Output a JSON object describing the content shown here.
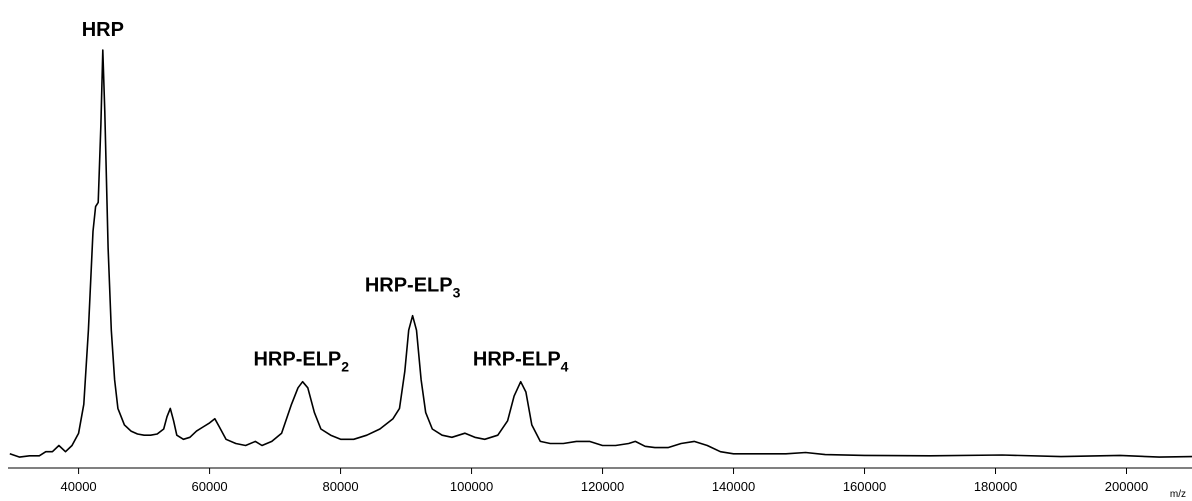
{
  "chart_data": {
    "type": "line",
    "title": "",
    "xlabel": "m/z",
    "ylabel": "",
    "xlim": [
      28000,
      210000
    ],
    "ylim": [
      0,
      100
    ],
    "grid": false,
    "x_ticks": [
      {
        "value": 40000,
        "label": "40000"
      },
      {
        "value": 60000,
        "label": "60000"
      },
      {
        "value": 80000,
        "label": "80000"
      },
      {
        "value": 100000,
        "label": "100000"
      },
      {
        "value": 120000,
        "label": "120000"
      },
      {
        "value": 140000,
        "label": "140000"
      },
      {
        "value": 160000,
        "label": "160000"
      },
      {
        "value": 180000,
        "label": "180000"
      },
      {
        "value": 200000,
        "label": "200000"
      }
    ],
    "annotations": [
      {
        "text": "HRP",
        "sub": "",
        "x": 43700,
        "y": 100
      },
      {
        "text": "HRP-ELP",
        "sub": "2",
        "x": 74000,
        "y": 20
      },
      {
        "text": "HRP-ELP",
        "sub": "3",
        "x": 91000,
        "y": 38
      },
      {
        "text": "HRP-ELP",
        "sub": "4",
        "x": 107500,
        "y": 20
      }
    ],
    "series": [
      {
        "values": [
          [
            29500,
            2.0
          ],
          [
            31000,
            1.2
          ],
          [
            32500,
            1.5
          ],
          [
            34000,
            1.5
          ],
          [
            35000,
            2.5
          ],
          [
            36000,
            2.5
          ],
          [
            37000,
            4.0
          ],
          [
            38000,
            2.5
          ],
          [
            39000,
            4.0
          ],
          [
            40000,
            7.0
          ],
          [
            40800,
            14.0
          ],
          [
            41500,
            32.0
          ],
          [
            42200,
            56.0
          ],
          [
            42600,
            62.0
          ],
          [
            43000,
            63.0
          ],
          [
            43400,
            82.0
          ],
          [
            43700,
            100.0
          ],
          [
            44000,
            85.0
          ],
          [
            44500,
            52.0
          ],
          [
            45000,
            32.0
          ],
          [
            45500,
            20.0
          ],
          [
            46000,
            13.0
          ],
          [
            47000,
            9.0
          ],
          [
            48000,
            7.5
          ],
          [
            49000,
            6.8
          ],
          [
            50000,
            6.5
          ],
          [
            51000,
            6.5
          ],
          [
            52000,
            6.8
          ],
          [
            53000,
            8.0
          ],
          [
            53500,
            11.0
          ],
          [
            54000,
            13.0
          ],
          [
            54500,
            10.0
          ],
          [
            55000,
            6.5
          ],
          [
            56000,
            5.5
          ],
          [
            57000,
            6.0
          ],
          [
            58000,
            7.5
          ],
          [
            59000,
            8.5
          ],
          [
            60000,
            9.5
          ],
          [
            60800,
            10.5
          ],
          [
            61500,
            8.5
          ],
          [
            62500,
            5.5
          ],
          [
            64000,
            4.5
          ],
          [
            65500,
            4.0
          ],
          [
            67000,
            5.0
          ],
          [
            68000,
            4.0
          ],
          [
            69500,
            5.0
          ],
          [
            71000,
            7.0
          ],
          [
            72500,
            14.0
          ],
          [
            73500,
            18.0
          ],
          [
            74200,
            19.5
          ],
          [
            75000,
            18.0
          ],
          [
            76000,
            12.0
          ],
          [
            77000,
            8.0
          ],
          [
            78500,
            6.5
          ],
          [
            80000,
            5.5
          ],
          [
            82000,
            5.5
          ],
          [
            84000,
            6.5
          ],
          [
            86000,
            8.0
          ],
          [
            88000,
            10.5
          ],
          [
            89000,
            13.0
          ],
          [
            89800,
            22.0
          ],
          [
            90400,
            32.0
          ],
          [
            91000,
            35.5
          ],
          [
            91600,
            32.0
          ],
          [
            92300,
            20.0
          ],
          [
            93000,
            12.0
          ],
          [
            94000,
            8.0
          ],
          [
            95500,
            6.5
          ],
          [
            97000,
            6.0
          ],
          [
            99000,
            7.0
          ],
          [
            100500,
            6.0
          ],
          [
            102000,
            5.5
          ],
          [
            104000,
            6.5
          ],
          [
            105500,
            10.0
          ],
          [
            106500,
            16.0
          ],
          [
            107500,
            19.5
          ],
          [
            108300,
            17.0
          ],
          [
            109200,
            9.0
          ],
          [
            110500,
            5.0
          ],
          [
            112000,
            4.5
          ],
          [
            114000,
            4.5
          ],
          [
            116000,
            5.0
          ],
          [
            118000,
            5.0
          ],
          [
            120000,
            4.0
          ],
          [
            122000,
            4.0
          ],
          [
            124000,
            4.5
          ],
          [
            125000,
            5.0
          ],
          [
            126500,
            3.8
          ],
          [
            128000,
            3.5
          ],
          [
            130000,
            3.5
          ],
          [
            132000,
            4.5
          ],
          [
            134000,
            5.0
          ],
          [
            136000,
            4.0
          ],
          [
            138000,
            2.5
          ],
          [
            140000,
            2.0
          ],
          [
            144000,
            2.0
          ],
          [
            148000,
            2.0
          ],
          [
            151000,
            2.3
          ],
          [
            154000,
            1.8
          ],
          [
            160000,
            1.6
          ],
          [
            170000,
            1.5
          ],
          [
            181000,
            1.7
          ],
          [
            190000,
            1.3
          ],
          [
            199000,
            1.6
          ],
          [
            205000,
            1.2
          ],
          [
            210000,
            1.3
          ]
        ]
      }
    ]
  }
}
